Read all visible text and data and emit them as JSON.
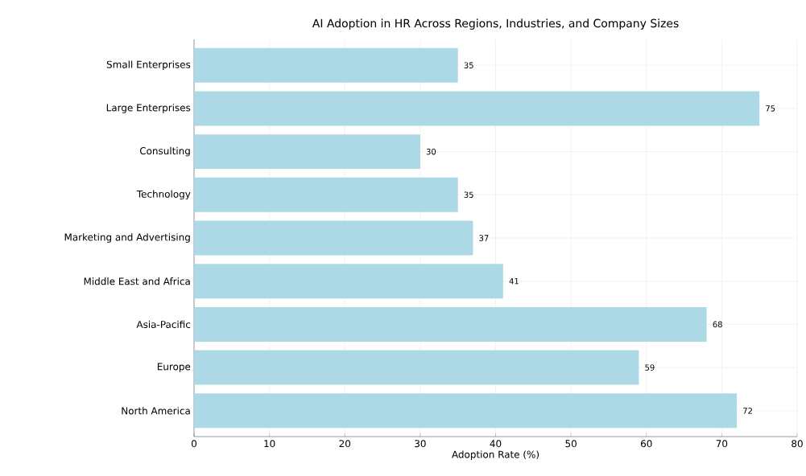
{
  "chart_data": {
    "type": "bar",
    "orientation": "horizontal",
    "title": "AI Adoption in HR Across Regions, Industries, and Company Sizes",
    "xlabel": "Adoption Rate (%)",
    "categories": [
      "Small Enterprises",
      "Large Enterprises",
      "Consulting",
      "Technology",
      "Marketing and Advertising",
      "Middle East and Africa",
      "Asia-Pacific",
      "Europe",
      "North America"
    ],
    "values": [
      35,
      75,
      30,
      35,
      37,
      41,
      68,
      59,
      72
    ],
    "color": "#add8e6",
    "xlim": [
      0,
      80
    ],
    "xticks": [
      0,
      10,
      20,
      30,
      40,
      50,
      60,
      70,
      80
    ],
    "grid": true,
    "data_labels": true
  }
}
